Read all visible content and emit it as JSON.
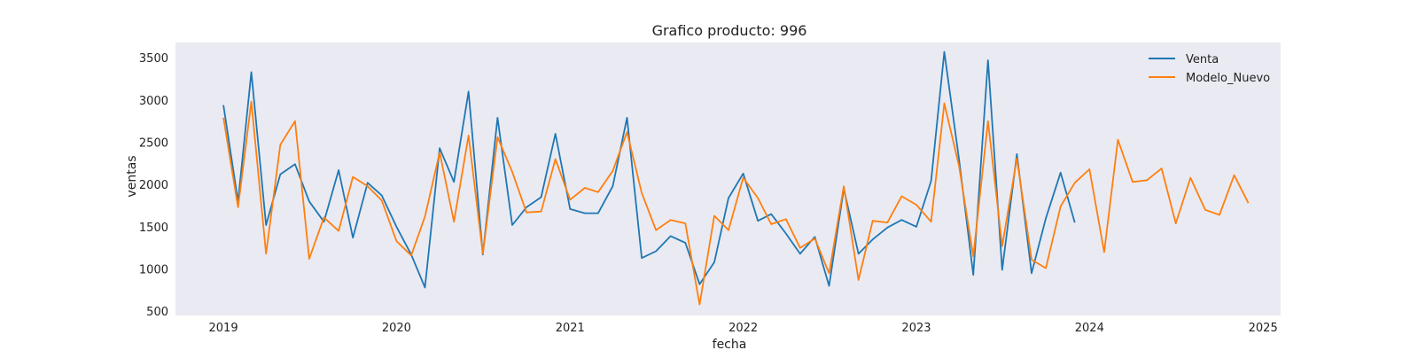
{
  "chart_data": {
    "type": "line",
    "title": "Grafico producto: 996",
    "xlabel": "fecha",
    "ylabel": "ventas",
    "xlim": [
      "2018-09-22",
      "2025-02-07"
    ],
    "ylim": [
      450,
      3680
    ],
    "x_ticks": [
      "2019",
      "2020",
      "2021",
      "2022",
      "2023",
      "2024",
      "2025"
    ],
    "y_ticks": [
      500,
      1000,
      1500,
      2000,
      2500,
      3000,
      3500
    ],
    "grid": false,
    "background": "#eaeaf2",
    "legend": {
      "position": "top-right"
    },
    "series": [
      {
        "name": "Venta",
        "color": "#1f77b4",
        "start": "2019-01",
        "values": [
          2940,
          1800,
          3330,
          1520,
          2120,
          2240,
          1800,
          1560,
          2170,
          1370,
          2020,
          1870,
          1500,
          1170,
          780,
          2430,
          2030,
          3100,
          1170,
          2790,
          1520,
          1730,
          1850,
          2600,
          1710,
          1660,
          1660,
          1980,
          2790,
          1130,
          1210,
          1390,
          1310,
          820,
          1080,
          1840,
          2130,
          1570,
          1650,
          1420,
          1180,
          1380,
          800,
          1950,
          1180,
          1350,
          1490,
          1580,
          1500,
          2040,
          3570,
          2300,
          930,
          3470,
          990,
          2360,
          950,
          1600,
          2140,
          1550
        ]
      },
      {
        "name": "Modelo_Nuevo",
        "color": "#ff7f0e",
        "start": "2019-01",
        "values": [
          2790,
          1730,
          2980,
          1180,
          2470,
          2750,
          1120,
          1610,
          1450,
          2090,
          1980,
          1810,
          1330,
          1160,
          1620,
          2380,
          1560,
          2580,
          1180,
          2560,
          2150,
          1670,
          1680,
          2300,
          1820,
          1960,
          1910,
          2160,
          2620,
          1900,
          1460,
          1580,
          1540,
          580,
          1630,
          1460,
          2080,
          1840,
          1530,
          1590,
          1250,
          1360,
          950,
          1980,
          870,
          1570,
          1550,
          1860,
          1760,
          1560,
          2960,
          2220,
          1150,
          2750,
          1270,
          2310,
          1110,
          1010,
          1740,
          2020,
          2180,
          1200,
          2530,
          2030,
          2050,
          2190,
          1540,
          2080,
          1700,
          1640,
          2110,
          1780
        ]
      }
    ]
  }
}
